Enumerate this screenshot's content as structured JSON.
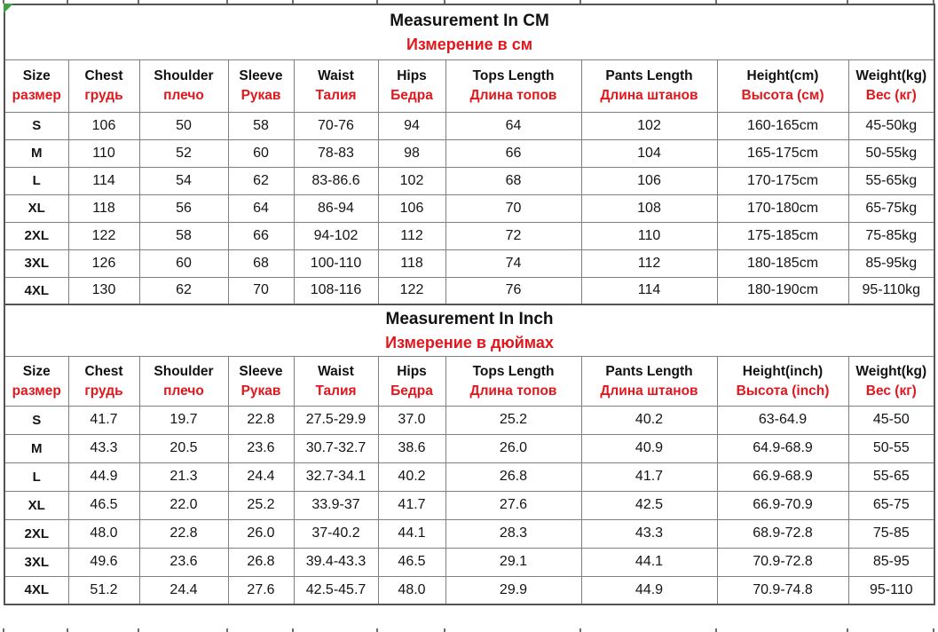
{
  "colors": {
    "red_text": "#e1171d",
    "band_bg": "#ebebeb",
    "outer_border": "#545454",
    "grid_border": "#7f7f7f",
    "corner_marker_green": "#3fa047"
  },
  "tables": [
    {
      "id": "cm",
      "title_en": "Measurement In CM",
      "title_ru": "Измерение в см",
      "columns": [
        {
          "en": "Size",
          "ru": "размер"
        },
        {
          "en": "Chest",
          "ru": "грудь"
        },
        {
          "en": "Shoulder",
          "ru": "плечо"
        },
        {
          "en": "Sleeve",
          "ru": "Рукав"
        },
        {
          "en": "Waist",
          "ru": "Талия"
        },
        {
          "en": "Hips",
          "ru": "Бедра"
        },
        {
          "en": "Tops Length",
          "ru": "Длина топов"
        },
        {
          "en": "Pants Length",
          "ru": "Длина штанов"
        },
        {
          "en": "Height(cm)",
          "ru": "Высота (см)"
        },
        {
          "en": "Weight(kg)",
          "ru": "Вес (кг)"
        }
      ],
      "rows": [
        [
          "S",
          "106",
          "50",
          "58",
          "70-76",
          "94",
          "64",
          "102",
          "160-165cm",
          "45-50kg"
        ],
        [
          "M",
          "110",
          "52",
          "60",
          "78-83",
          "98",
          "66",
          "104",
          "165-175cm",
          "50-55kg"
        ],
        [
          "L",
          "114",
          "54",
          "62",
          "83-86.6",
          "102",
          "68",
          "106",
          "170-175cm",
          "55-65kg"
        ],
        [
          "XL",
          "118",
          "56",
          "64",
          "86-94",
          "106",
          "70",
          "108",
          "170-180cm",
          "65-75kg"
        ],
        [
          "2XL",
          "122",
          "58",
          "66",
          "94-102",
          "112",
          "72",
          "110",
          "175-185cm",
          "75-85kg"
        ],
        [
          "3XL",
          "126",
          "60",
          "68",
          "100-110",
          "118",
          "74",
          "112",
          "180-185cm",
          "85-95kg"
        ],
        [
          "4XL",
          "130",
          "62",
          "70",
          "108-116",
          "122",
          "76",
          "114",
          "180-190cm",
          "95-110kg"
        ]
      ]
    },
    {
      "id": "inch",
      "title_en": "Measurement In Inch",
      "title_ru": "Измерение в дюймах",
      "columns": [
        {
          "en": "Size",
          "ru": "размер"
        },
        {
          "en": "Chest",
          "ru": "грудь"
        },
        {
          "en": "Shoulder",
          "ru": "плечо"
        },
        {
          "en": "Sleeve",
          "ru": "Рукав"
        },
        {
          "en": "Waist",
          "ru": "Талия"
        },
        {
          "en": "Hips",
          "ru": "Бедра"
        },
        {
          "en": "Tops Length",
          "ru": "Длина топов"
        },
        {
          "en": "Pants Length",
          "ru": "Длина штанов"
        },
        {
          "en": "Height(inch)",
          "ru": "Высота (inch)"
        },
        {
          "en": "Weight(kg)",
          "ru": "Вес (кг)"
        }
      ],
      "rows": [
        [
          "S",
          "41.7",
          "19.7",
          "22.8",
          "27.5-29.9",
          "37.0",
          "25.2",
          "40.2",
          "63-64.9",
          "45-50"
        ],
        [
          "M",
          "43.3",
          "20.5",
          "23.6",
          "30.7-32.7",
          "38.6",
          "26.0",
          "40.9",
          "64.9-68.9",
          "50-55"
        ],
        [
          "L",
          "44.9",
          "21.3",
          "24.4",
          "32.7-34.1",
          "40.2",
          "26.8",
          "41.7",
          "66.9-68.9",
          "55-65"
        ],
        [
          "XL",
          "46.5",
          "22.0",
          "25.2",
          "33.9-37",
          "41.7",
          "27.6",
          "42.5",
          "66.9-70.9",
          "65-75"
        ],
        [
          "2XL",
          "48.0",
          "22.8",
          "26.0",
          "37-40.2",
          "44.1",
          "28.3",
          "43.3",
          "68.9-72.8",
          "75-85"
        ],
        [
          "3XL",
          "49.6",
          "23.6",
          "26.8",
          "39.4-43.3",
          "46.5",
          "29.1",
          "44.1",
          "70.9-72.8",
          "85-95"
        ],
        [
          "4XL",
          "51.2",
          "24.4",
          "27.6",
          "42.5-45.7",
          "48.0",
          "29.9",
          "44.9",
          "70.9-74.8",
          "95-110"
        ]
      ]
    }
  ]
}
